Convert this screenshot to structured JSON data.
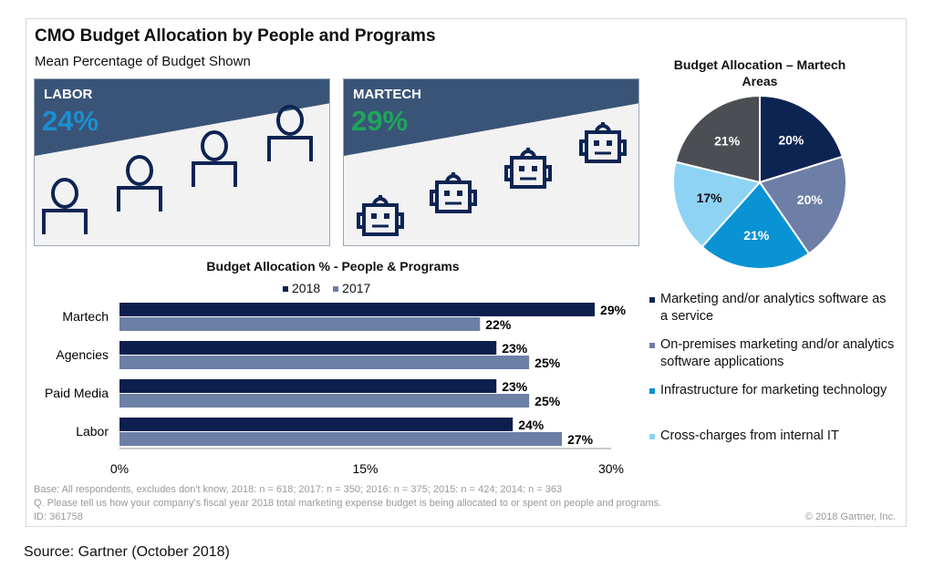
{
  "header": {
    "title": "CMO Budget Allocation by People and Programs",
    "subtitle": "Mean Percentage of Budget Shown"
  },
  "panels": [
    {
      "label": "LABOR",
      "value": "24%",
      "value_color": "#1a8fd0",
      "icon": "person-icon"
    },
    {
      "label": "MARTECH",
      "value": "29%",
      "value_color": "#1ea55b",
      "icon": "robot-icon"
    }
  ],
  "colors": {
    "panel_band": "#3a5478",
    "icon": "#0d2453"
  },
  "chart_data": [
    {
      "type": "bar",
      "orientation": "horizontal",
      "title": "Budget Allocation % - People & Programs",
      "categories": [
        "Martech",
        "Agencies",
        "Paid Media",
        "Labor"
      ],
      "series": [
        {
          "name": "2018",
          "values": [
            29,
            23,
            23,
            24
          ],
          "labels": [
            "29%",
            "23%",
            "23%",
            "24%"
          ],
          "color": "#0d1f4e"
        },
        {
          "name": "2017",
          "values": [
            22,
            25,
            25,
            27
          ],
          "labels": [
            "22%",
            "25%",
            "25%",
            "27%"
          ],
          "color": "#6c7fa5"
        }
      ],
      "xlim": [
        0,
        30
      ],
      "xticks": [
        "0%",
        "15%",
        "30%"
      ],
      "legend": "top"
    },
    {
      "type": "pie",
      "title": "Budget Allocation – Martech Areas",
      "slices": [
        {
          "name": "Marketing and/or analytics software as a service",
          "value": 20,
          "label": "20%",
          "color": "#0d2453"
        },
        {
          "name": "On-premises marketing and/or analytics software applications",
          "value": 20,
          "label": "20%",
          "color": "#6d7fa6"
        },
        {
          "name": "Infrastructure for marketing technology",
          "value": 21,
          "label": "21%",
          "color": "#0a93d4"
        },
        {
          "name": "Cross-charges from internal IT",
          "value": 17,
          "label": "17%",
          "color": "#8fd3f4"
        },
        {
          "value": 21,
          "label": "21%",
          "color": "#4b4f54"
        }
      ],
      "legend": "bottom"
    }
  ],
  "footer": {
    "base": "Base: All respondents, excludes don't know, 2018: n = 618; 2017: n = 350; 2016: n = 375; 2015: n =  424; 2014: n = 363",
    "question": "Q. Please tell us how your company's fiscal year 2018 total marketing expense budget is being allocated to or spent on people and programs.",
    "id": "ID: 361758",
    "copyright": "© 2018 Gartner, Inc."
  },
  "source": "Source: Gartner (October 2018)"
}
